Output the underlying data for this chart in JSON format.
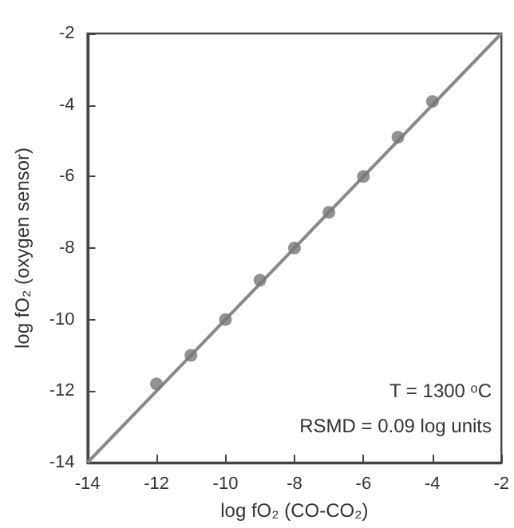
{
  "chart_data": {
    "type": "scatter",
    "xlabel": "log fO₂ (CO-CO₂)",
    "ylabel": "log fO₂ (oxygen sensor)",
    "x": [
      -12,
      -11,
      -10,
      -9,
      -8,
      -7,
      -6,
      -5,
      -4
    ],
    "series": [
      {
        "color": "#777777",
        "marker": "circle",
        "values": [
          -11.8,
          -11,
          -10,
          -8.9,
          -8,
          -7,
          -6,
          -4.9,
          -3.9
        ]
      },
      {
        "type": "line",
        "color": "#888888",
        "x": [
          -14,
          -2
        ],
        "values": [
          -14,
          -2
        ]
      }
    ],
    "xlim": [
      -14,
      -2
    ],
    "ylim": [
      -14,
      -2
    ],
    "xticks": [
      -14,
      -12,
      -10,
      -8,
      -6,
      -4,
      -2
    ],
    "yticks": [
      -14,
      -12,
      -10,
      -8,
      -6,
      -4,
      -2
    ],
    "annotations": [
      "T = 1300 ᵒC",
      "RSMD = 0.09 log units"
    ],
    "grid": false
  }
}
